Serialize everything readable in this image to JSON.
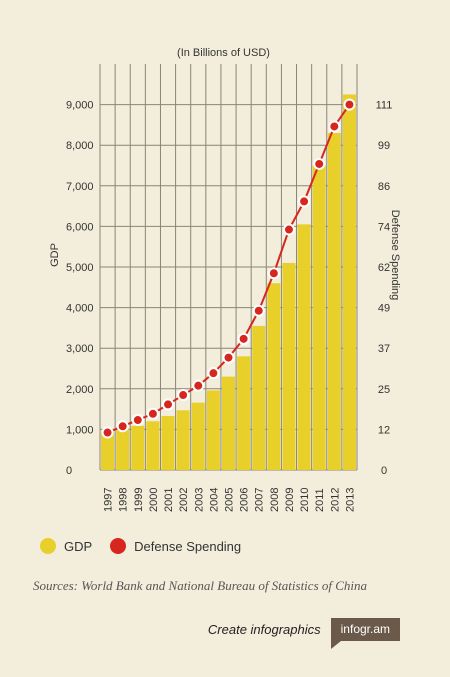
{
  "chart_data": {
    "type": "bar",
    "title": "(In Billions of USD)",
    "categories": [
      "1997",
      "1998",
      "1999",
      "2000",
      "2001",
      "2002",
      "2003",
      "2004",
      "2005",
      "2006",
      "2007",
      "2008",
      "2009",
      "2010",
      "2011",
      "2012",
      "2013"
    ],
    "series": [
      {
        "name": "GDP",
        "type": "bar",
        "axis": "left",
        "color": "#e8cf2a",
        "values": [
          950,
          1030,
          1090,
          1200,
          1330,
          1470,
          1660,
          1960,
          2300,
          2800,
          3550,
          4600,
          5100,
          6050,
          7500,
          8300,
          9250
        ]
      },
      {
        "name": "Defense Spending",
        "type": "line",
        "axis": "right",
        "color": "#d7261e",
        "values": [
          12,
          14,
          16,
          18,
          21,
          24,
          27,
          31,
          36,
          42,
          51,
          63,
          77,
          86,
          98,
          110,
          117
        ]
      }
    ],
    "left_axis": {
      "label": "GDP",
      "ylim": [
        0,
        10000
      ],
      "ticks": [
        0,
        1000,
        2000,
        3000,
        4000,
        5000,
        6000,
        7000,
        8000,
        9000
      ],
      "tick_labels": [
        "0",
        "1,000",
        "2,000",
        "3,000",
        "4,000",
        "5,000",
        "6,000",
        "7,000",
        "8,000",
        "9,000"
      ]
    },
    "right_axis": {
      "label": "Defense Spending",
      "ticks": [
        "0",
        "12",
        "25",
        "37",
        "49",
        "62",
        "74",
        "86",
        "99",
        "111"
      ]
    },
    "grid": true,
    "legend": "bottom-left"
  },
  "legend": {
    "items": [
      {
        "label": "GDP",
        "color": "#e8cf2a"
      },
      {
        "label": "Defense Spending",
        "color": "#d7261e"
      }
    ]
  },
  "sources": "Sources: World Bank and National Bureau of Statistics of China",
  "branding": {
    "create_label": "Create infographics",
    "badge_label": "infogr.am"
  }
}
